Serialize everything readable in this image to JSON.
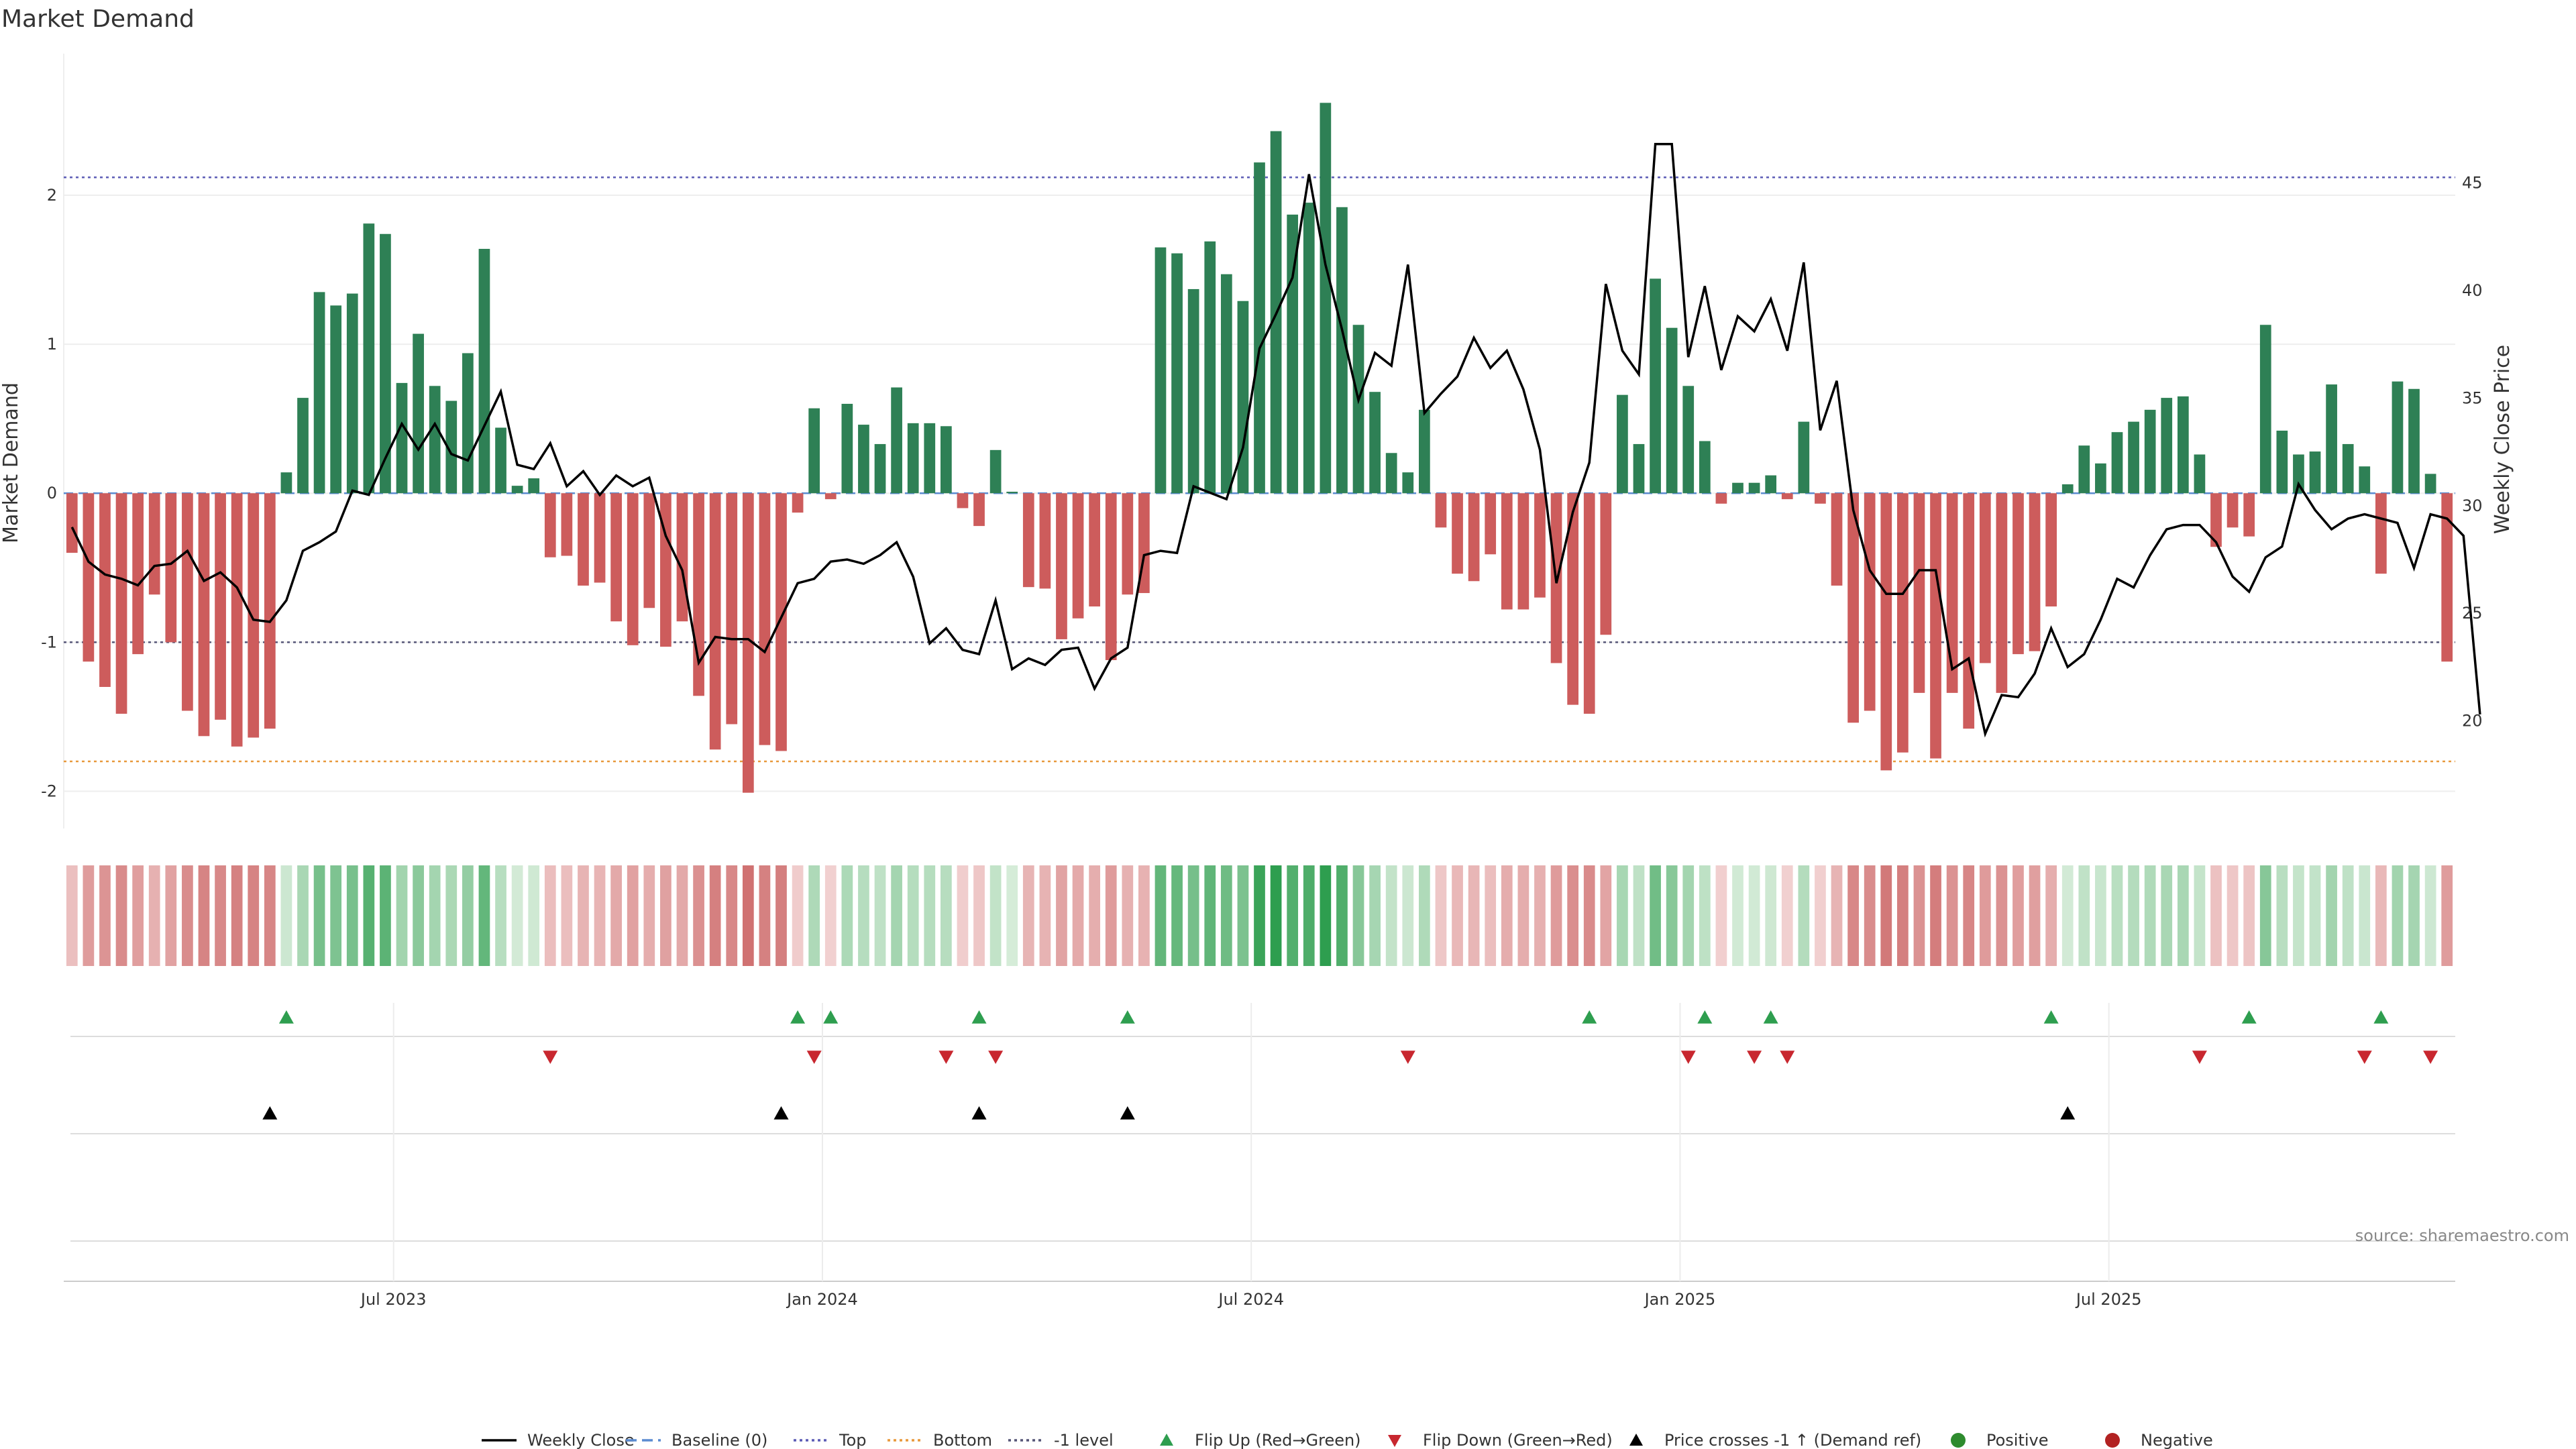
{
  "chart_data": {
    "type": "bar",
    "title": "Market Demand",
    "ylabel_left": "Market Demand",
    "ylabel_right": "Weekly Close Price",
    "ylim_left": [
      -2.25,
      2.95
    ],
    "ylim_right": [
      15,
      51
    ],
    "yticks_left": [
      2,
      1,
      0,
      -1,
      -2
    ],
    "yticks_right": [
      45,
      40,
      35,
      30,
      25,
      20
    ],
    "x_ticks": [
      {
        "label": "Jul 2023",
        "week": 20
      },
      {
        "label": "Jan 2024",
        "week": 46
      },
      {
        "label": "Jul 2024",
        "week": 72
      },
      {
        "label": "Jan 2025",
        "week": 98
      },
      {
        "label": "Jul 2025",
        "week": 124
      }
    ],
    "reference_lines": [
      {
        "name": "Top",
        "value": 2.12,
        "color": "#5b5bb5"
      },
      {
        "name": "-1 level",
        "value": -1.0,
        "color": "#555577"
      },
      {
        "name": "Bottom",
        "value": -1.8,
        "color": "#e8993c"
      }
    ],
    "demand": [
      -0.4,
      -1.13,
      -1.3,
      -1.48,
      -1.08,
      -0.68,
      -1.0,
      -1.46,
      -1.63,
      -1.52,
      -1.7,
      -1.64,
      -1.58,
      0.14,
      0.64,
      1.35,
      1.26,
      1.34,
      1.81,
      1.74,
      0.74,
      1.07,
      0.72,
      0.62,
      0.94,
      1.64,
      0.44,
      0.05,
      0.1,
      -0.43,
      -0.42,
      -0.62,
      -0.6,
      -0.86,
      -1.02,
      -0.77,
      -1.03,
      -0.86,
      -1.36,
      -1.72,
      -1.55,
      -2.01,
      -1.69,
      -1.73,
      -0.13,
      0.57,
      -0.04,
      0.6,
      0.46,
      0.33,
      0.71,
      0.47,
      0.47,
      0.45,
      -0.1,
      -0.22,
      0.29,
      0.01,
      -0.63,
      -0.64,
      -0.98,
      -0.84,
      -0.76,
      -1.12,
      -0.68,
      -0.67,
      1.65,
      1.61,
      1.37,
      1.69,
      1.47,
      1.29,
      2.22,
      2.43,
      1.87,
      1.95,
      2.62,
      1.92,
      1.13,
      0.68,
      0.27,
      0.14,
      0.56,
      -0.23,
      -0.54,
      -0.59,
      -0.41,
      -0.78,
      -0.78,
      -0.7,
      -1.14,
      -1.42,
      -1.48,
      -0.95,
      0.66,
      0.33,
      1.44,
      1.11,
      0.72,
      0.35,
      -0.07,
      0.07,
      0.07,
      0.12,
      -0.04,
      0.48,
      -0.07,
      -0.62,
      -1.54,
      -1.46,
      -1.86,
      -1.74,
      -1.34,
      -1.78,
      -1.34,
      -1.58,
      -1.14,
      -1.34,
      -1.08,
      -1.06,
      -0.76,
      0.06,
      0.32,
      0.2,
      0.41,
      0.48,
      0.56,
      0.64,
      0.65,
      0.26,
      -0.36,
      -0.23,
      -0.29,
      1.13,
      0.42,
      0.26,
      0.28,
      0.73,
      0.33,
      0.18,
      -0.54,
      0.75,
      0.7,
      0.13,
      -1.13
    ],
    "close": [
      29,
      27.4,
      26.8,
      26.6,
      26.3,
      27.2,
      27.3,
      27.9,
      26.5,
      26.9,
      26.2,
      24.7,
      24.6,
      25.6,
      27.9,
      28.3,
      28.8,
      30.7,
      30.5,
      32.2,
      33.8,
      32.6,
      33.8,
      32.4,
      32.1,
      33.7,
      35.3,
      31.9,
      31.7,
      32.9,
      30.9,
      31.6,
      30.5,
      31.4,
      30.9,
      31.3,
      28.6,
      27.0,
      22.7,
      23.9,
      23.8,
      23.8,
      23.2,
      24.8,
      26.4,
      26.6,
      27.4,
      27.5,
      27.3,
      27.7,
      28.3,
      26.7,
      23.6,
      24.3,
      23.3,
      23.1,
      25.6,
      22.4,
      22.9,
      22.6,
      23.3,
      23.4,
      21.5,
      22.9,
      23.4,
      27.7,
      27.9,
      27.8,
      30.9,
      30.6,
      30.3,
      32.7,
      37.3,
      38.9,
      40.6,
      45.4,
      41.2,
      38.2,
      34.9,
      37.1,
      36.5,
      41.2,
      34.3,
      35.2,
      36.0,
      37.8,
      36.4,
      37.2,
      35.4,
      32.6,
      26.4,
      29.7,
      32.0,
      40.3,
      37.2,
      36.1,
      46.8,
      46.8,
      36.9,
      40.2,
      36.3,
      38.8,
      38.1,
      39.6,
      37.2,
      41.3,
      33.5,
      35.8,
      29.8,
      27.0,
      25.9,
      25.9,
      27.0,
      27.0,
      22.4,
      22.9,
      19.4,
      21.2,
      21.1,
      22.2,
      24.3,
      22.5,
      23.1,
      24.7,
      26.6,
      26.2,
      27.7,
      28.9,
      29.1,
      29.1,
      28.3,
      26.7,
      26.0,
      27.6,
      28.1,
      31.0,
      29.8,
      28.9,
      29.4,
      29.6,
      29.4,
      29.2,
      27.1,
      29.6,
      29.4,
      28.6,
      20.3
    ],
    "flip_up_weeks": [
      13,
      44,
      46,
      55,
      64,
      92,
      99,
      103,
      120,
      132,
      140
    ],
    "flip_down_weeks": [
      29,
      45,
      53,
      56,
      81,
      98,
      102,
      104,
      129,
      139,
      143
    ],
    "price_cross_weeks": [
      12,
      43,
      55,
      64,
      121
    ],
    "legend": [
      {
        "label": "Weekly Close",
        "symbol": "line-solid",
        "color": "#000000"
      },
      {
        "label": "Baseline (0)",
        "symbol": "line-dashed",
        "color": "#5b8bd0"
      },
      {
        "label": "Top",
        "symbol": "line-dotted",
        "color": "#5b5bb5"
      },
      {
        "label": "Bottom",
        "symbol": "line-dotted",
        "color": "#e8993c"
      },
      {
        "label": "-1 level",
        "symbol": "line-dotted",
        "color": "#555577"
      },
      {
        "label": "Flip Up (Red→Green)",
        "symbol": "triangle-up",
        "color": "#2e9e4f"
      },
      {
        "label": "Flip Down (Green→Red)",
        "symbol": "triangle-down",
        "color": "#c8272f"
      },
      {
        "label": "Price crosses -1 ↑ (Demand ref)",
        "symbol": "triangle-up",
        "color": "#000000"
      },
      {
        "label": "Positive",
        "symbol": "dot",
        "color": "#2e8b2e"
      },
      {
        "label": "Negative",
        "symbol": "dot",
        "color": "#b22222"
      }
    ],
    "source": "source: sharemaestro.com",
    "colors": {
      "positive": "#2e8055",
      "negative": "#cd5c5c",
      "close": "#000000"
    }
  }
}
